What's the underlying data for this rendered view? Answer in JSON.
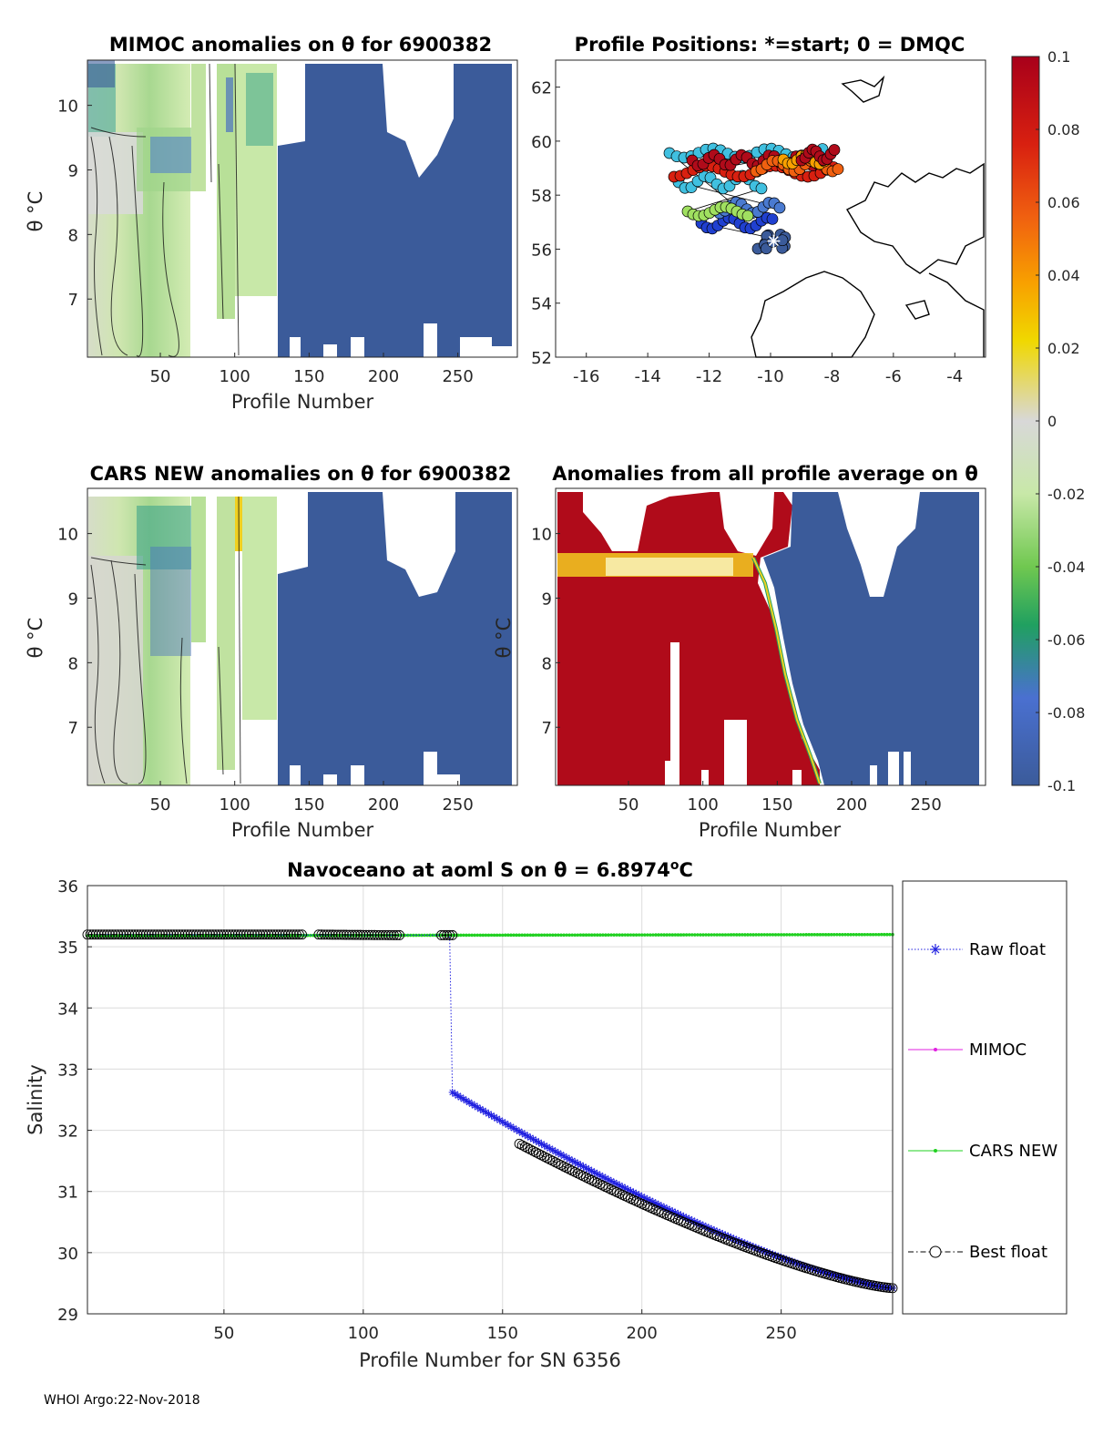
{
  "footer": "WHOI Argo:22-Nov-2018",
  "colors": {
    "anomaly_low": "#3b5b9a",
    "anomaly_high": "#b00b1a",
    "raw_float": "#2020e0",
    "mimoc": "#e020e0",
    "cars_new": "#20d020",
    "best_float": "#000000"
  },
  "panels": {
    "mimoc": {
      "title": "MIMOC anomalies on θ  for 6900382",
      "xlabel": "Profile Number",
      "ylabel": "θ °C"
    },
    "positions": {
      "title": "Profile Positions: *=start; 0 = DMQC"
    },
    "cars": {
      "title": "CARS NEW anomalies on θ for 6900382",
      "xlabel": "Profile Number",
      "ylabel": "θ °C"
    },
    "allavg": {
      "title": "Anomalies from all profile average on θ",
      "xlabel": "Profile Number",
      "ylabel": "θ °C"
    }
  },
  "colorbar": {
    "ticks": [
      "0.1",
      "0.08",
      "0.06",
      "0.04",
      "0.02",
      "0",
      "-0.02",
      "-0.04",
      "-0.06",
      "-0.08",
      "-0.1"
    ]
  },
  "chart_data": [
    {
      "type": "heatmap",
      "title": "MIMOC anomalies on θ  for 6900382",
      "xlabel": "Profile Number",
      "ylabel": "θ °C",
      "xlim": [
        1,
        290
      ],
      "ylim": [
        6.1,
        10.7
      ],
      "xticks": [
        50,
        100,
        150,
        200,
        250
      ],
      "yticks": [
        7,
        8,
        9,
        10
      ],
      "clim": [
        -0.1,
        0.1
      ],
      "note": "profiles 1-130 mostly near -0.02 to -0.08; profiles 130-290 saturated at -0.1"
    },
    {
      "type": "scatter",
      "title": "Profile Positions: *=start; 0 = DMQC",
      "xlim": [
        -17,
        -3
      ],
      "ylim": [
        52,
        63
      ],
      "xticks": [
        -16,
        -14,
        -12,
        -10,
        -8,
        -6,
        -4
      ],
      "yticks": [
        52,
        54,
        56,
        58,
        60,
        62
      ],
      "start_position": [
        -9.9,
        56.3
      ]
    },
    {
      "type": "heatmap",
      "title": "CARS NEW anomalies on θ for 6900382",
      "xlabel": "Profile Number",
      "ylabel": "θ °C",
      "xlim": [
        1,
        290
      ],
      "ylim": [
        6.1,
        10.7
      ],
      "xticks": [
        50,
        100,
        150,
        200,
        250
      ],
      "yticks": [
        7,
        8,
        9,
        10
      ],
      "clim": [
        -0.1,
        0.1
      ]
    },
    {
      "type": "heatmap",
      "title": "Anomalies from all profile average on θ",
      "xlabel": "Profile Number",
      "ylabel": "θ °C",
      "xlim": [
        1,
        290
      ],
      "ylim": [
        6.1,
        10.7
      ],
      "xticks": [
        50,
        100,
        150,
        200,
        250
      ],
      "yticks": [
        7,
        8,
        9,
        10
      ],
      "clim": [
        -0.1,
        0.1
      ],
      "note": "profiles before ~135-180 saturated at +0.1, later profiles at -0.1"
    },
    {
      "type": "line",
      "title": "Navoceano at aoml S on θ = 6.8974°C",
      "title_prefix": "Navoceano at aoml S on θ = 6.8974",
      "title_sup": "o",
      "title_suffix": "C",
      "xlabel": "Profile Number for SN 6356",
      "ylabel": "Salinity",
      "xlim": [
        1,
        290
      ],
      "ylim": [
        29,
        36
      ],
      "xticks": [
        50,
        100,
        150,
        200,
        250
      ],
      "yticks": [
        29,
        30,
        31,
        32,
        33,
        34,
        35,
        36
      ],
      "grid": true,
      "legend": [
        "Raw float",
        "MIMOC",
        "CARS NEW",
        "Best float"
      ],
      "series": [
        {
          "name": "Raw float",
          "segments": [
            {
              "x_start": 1,
              "x_end": 131,
              "y_start": 35.2,
              "y_end": 35.19
            },
            {
              "x_start": 132,
              "x_end": 290,
              "y_start": 32.62,
              "y_end": 29.42
            }
          ]
        },
        {
          "name": "CARS NEW",
          "x_start": 1,
          "x_end": 290,
          "y_start": 35.18,
          "y_end": 35.2
        },
        {
          "name": "Best float",
          "segments": [
            {
              "x_start": 1,
              "x_end": 78,
              "y_start": 35.2,
              "y_end": 35.2
            },
            {
              "x_start": 84,
              "x_end": 113,
              "y_start": 35.2,
              "y_end": 35.19
            },
            {
              "x_start": 128,
              "x_end": 132,
              "y_start": 35.19,
              "y_end": 35.19
            },
            {
              "x_start": 156,
              "x_end": 290,
              "y_start": 31.78,
              "y_end": 29.42
            }
          ]
        }
      ]
    }
  ]
}
